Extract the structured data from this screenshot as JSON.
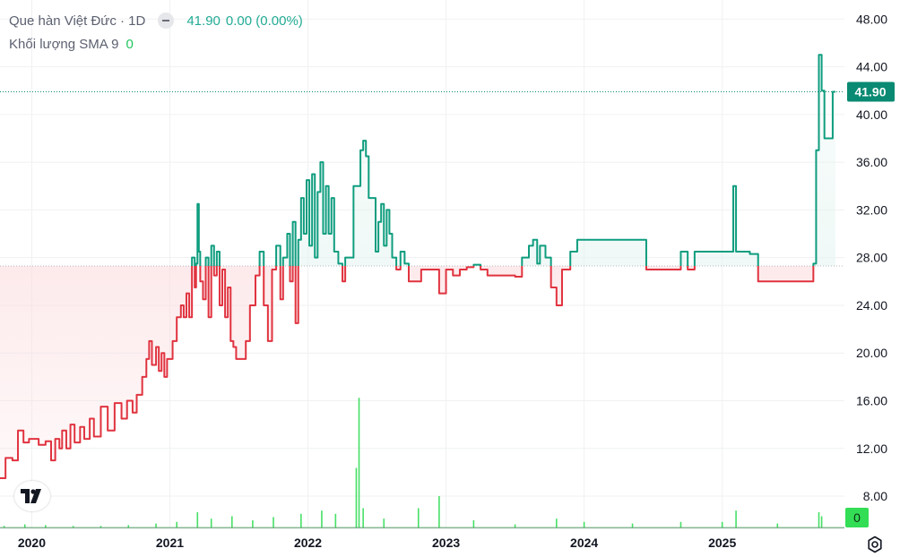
{
  "legend": {
    "title": "Que hàn Việt Đức · 1D",
    "last": "41.90",
    "change": "0.00 (0.00%)",
    "sma_label": "Khối lượng SMA 9",
    "sma_value": "0"
  },
  "price_label": "41.90",
  "volume_label": "0",
  "colors": {
    "up": "#0f9d7f",
    "down": "#e0333f",
    "up_fill": "#e3f4f0",
    "down_fill": "#fbd9dc",
    "baseline": "#b5b8bf",
    "last_line": "#0a8a72",
    "volume": "#33dd55",
    "grid": "#f0f1f3",
    "axis_text": "#131722"
  },
  "icons": {
    "logo": "tradingview-logo-icon",
    "settings": "settings-gear-icon",
    "toggle": "hide-series-icon"
  },
  "chart_data": {
    "type": "area",
    "style": "baseline",
    "baseline_value": 27.3,
    "ylim": [
      5.3,
      49.6
    ],
    "y_ticks": [
      "48.00",
      "44.00",
      "40.00",
      "36.00",
      "32.00",
      "28.00",
      "24.00",
      "20.00",
      "16.00",
      "12.00",
      "8.00"
    ],
    "y_tick_values": [
      48,
      44,
      40,
      36,
      32,
      28,
      24,
      20,
      16,
      12,
      8
    ],
    "x_ticks": [
      "2020",
      "2021",
      "2022",
      "2023",
      "2024",
      "2025"
    ],
    "x_tick_values": [
      2020.0,
      2021.0,
      2022.0,
      2023.0,
      2024.0,
      2025.0
    ],
    "xlim": [
      2019.77,
      2025.82
    ],
    "last_price": 41.9,
    "series": [
      {
        "points": [
          [
            2019.77,
            9.5
          ],
          [
            2019.81,
            11.2
          ],
          [
            2019.86,
            11.0
          ],
          [
            2019.9,
            13.5
          ],
          [
            2019.94,
            12.5
          ],
          [
            2019.98,
            12.8
          ],
          [
            2020.05,
            12.3
          ],
          [
            2020.1,
            12.6
          ],
          [
            2020.14,
            11.0
          ],
          [
            2020.17,
            12.8
          ],
          [
            2020.2,
            12.0
          ],
          [
            2020.22,
            13.5
          ],
          [
            2020.25,
            12.0
          ],
          [
            2020.28,
            14.0
          ],
          [
            2020.31,
            12.5
          ],
          [
            2020.35,
            13.8
          ],
          [
            2020.38,
            12.8
          ],
          [
            2020.42,
            14.5
          ],
          [
            2020.45,
            13.0
          ],
          [
            2020.5,
            15.5
          ],
          [
            2020.55,
            13.5
          ],
          [
            2020.6,
            15.8
          ],
          [
            2020.65,
            14.5
          ],
          [
            2020.69,
            16.0
          ],
          [
            2020.73,
            15.0
          ],
          [
            2020.76,
            16.5
          ],
          [
            2020.8,
            18.0
          ],
          [
            2020.83,
            19.5
          ],
          [
            2020.85,
            21.0
          ],
          [
            2020.87,
            19.0
          ],
          [
            2020.9,
            20.5
          ],
          [
            2020.92,
            18.5
          ],
          [
            2020.94,
            20.0
          ],
          [
            2020.96,
            18.0
          ],
          [
            2020.98,
            19.5
          ],
          [
            2021.02,
            21.0
          ],
          [
            2021.05,
            23.0
          ],
          [
            2021.08,
            24.0
          ],
          [
            2021.1,
            23.0
          ],
          [
            2021.12,
            25.0
          ],
          [
            2021.14,
            23.0
          ],
          [
            2021.16,
            28.0
          ],
          [
            2021.18,
            25.5
          ],
          [
            2021.19,
            27.5
          ],
          [
            2021.2,
            32.5
          ],
          [
            2021.21,
            28.5
          ],
          [
            2021.22,
            26.0
          ],
          [
            2021.24,
            24.5
          ],
          [
            2021.26,
            28.0
          ],
          [
            2021.28,
            23.0
          ],
          [
            2021.3,
            29.0
          ],
          [
            2021.32,
            26.5
          ],
          [
            2021.34,
            28.5
          ],
          [
            2021.36,
            24.0
          ],
          [
            2021.38,
            27.0
          ],
          [
            2021.4,
            23.0
          ],
          [
            2021.42,
            25.5
          ],
          [
            2021.44,
            21.0
          ],
          [
            2021.46,
            20.5
          ],
          [
            2021.48,
            19.5
          ],
          [
            2021.52,
            19.5
          ],
          [
            2021.55,
            21.0
          ],
          [
            2021.58,
            24.0
          ],
          [
            2021.62,
            26.5
          ],
          [
            2021.65,
            28.5
          ],
          [
            2021.68,
            24.0
          ],
          [
            2021.71,
            21.0
          ],
          [
            2021.74,
            27.0
          ],
          [
            2021.77,
            29.0
          ],
          [
            2021.8,
            24.5
          ],
          [
            2021.82,
            28.0
          ],
          [
            2021.85,
            30.0
          ],
          [
            2021.87,
            26.0
          ],
          [
            2021.89,
            31.0
          ],
          [
            2021.91,
            22.5
          ],
          [
            2021.93,
            29.5
          ],
          [
            2021.95,
            33.0
          ],
          [
            2021.97,
            30.0
          ],
          [
            2021.99,
            34.5
          ],
          [
            2022.01,
            29.0
          ],
          [
            2022.03,
            35.0
          ],
          [
            2022.05,
            28.0
          ],
          [
            2022.07,
            33.5
          ],
          [
            2022.09,
            36.0
          ],
          [
            2022.11,
            30.0
          ],
          [
            2022.13,
            34.0
          ],
          [
            2022.15,
            30.0
          ],
          [
            2022.17,
            33.0
          ],
          [
            2022.19,
            28.5
          ],
          [
            2022.22,
            27.5
          ],
          [
            2022.25,
            26.0
          ],
          [
            2022.27,
            28.0
          ],
          [
            2022.3,
            28.0
          ],
          [
            2022.33,
            34.0
          ],
          [
            2022.36,
            34.0
          ],
          [
            2022.38,
            37.0
          ],
          [
            2022.4,
            37.8
          ],
          [
            2022.42,
            36.5
          ],
          [
            2022.44,
            33.0
          ],
          [
            2022.47,
            33.0
          ],
          [
            2022.49,
            28.5
          ],
          [
            2022.51,
            31.0
          ],
          [
            2022.53,
            32.5
          ],
          [
            2022.55,
            29.0
          ],
          [
            2022.57,
            32.0
          ],
          [
            2022.59,
            30.0
          ],
          [
            2022.61,
            28.0
          ],
          [
            2022.64,
            27.0
          ],
          [
            2022.67,
            28.5
          ],
          [
            2022.7,
            27.5
          ],
          [
            2022.73,
            26.0
          ],
          [
            2022.78,
            26.0
          ],
          [
            2022.82,
            27.0
          ],
          [
            2022.9,
            27.0
          ],
          [
            2022.95,
            25.0
          ],
          [
            2023.0,
            27.0
          ],
          [
            2023.05,
            26.5
          ],
          [
            2023.1,
            27.0
          ],
          [
            2023.15,
            27.2
          ],
          [
            2023.2,
            27.4
          ],
          [
            2023.25,
            27.0
          ],
          [
            2023.3,
            26.5
          ],
          [
            2023.35,
            26.5
          ],
          [
            2023.45,
            26.5
          ],
          [
            2023.5,
            26.4
          ],
          [
            2023.55,
            28.0
          ],
          [
            2023.6,
            29.0
          ],
          [
            2023.63,
            29.5
          ],
          [
            2023.66,
            27.5
          ],
          [
            2023.68,
            29.0
          ],
          [
            2023.72,
            28.0
          ],
          [
            2023.76,
            25.5
          ],
          [
            2023.8,
            24.0
          ],
          [
            2023.84,
            27.0
          ],
          [
            2023.9,
            28.5
          ],
          [
            2023.95,
            29.5
          ],
          [
            2024.0,
            29.5
          ],
          [
            2024.1,
            29.5
          ],
          [
            2024.2,
            29.5
          ],
          [
            2024.3,
            29.5
          ],
          [
            2024.4,
            29.5
          ],
          [
            2024.45,
            27.0
          ],
          [
            2024.55,
            27.0
          ],
          [
            2024.65,
            27.0
          ],
          [
            2024.7,
            28.5
          ],
          [
            2024.75,
            27.0
          ],
          [
            2024.8,
            28.5
          ],
          [
            2024.9,
            28.5
          ],
          [
            2025.0,
            28.5
          ],
          [
            2025.05,
            28.5
          ],
          [
            2025.08,
            34.0
          ],
          [
            2025.1,
            28.5
          ],
          [
            2025.15,
            28.5
          ],
          [
            2025.2,
            28.3
          ],
          [
            2025.26,
            26.0
          ],
          [
            2025.32,
            26.0
          ],
          [
            2025.45,
            26.0
          ],
          [
            2025.55,
            26.0
          ],
          [
            2025.63,
            26.0
          ],
          [
            2025.66,
            27.5
          ],
          [
            2025.68,
            37.0
          ],
          [
            2025.7,
            45.0
          ],
          [
            2025.72,
            42.0
          ],
          [
            2025.74,
            38.0
          ],
          [
            2025.78,
            38.0
          ],
          [
            2025.8,
            41.9
          ],
          [
            2025.82,
            41.9
          ]
        ]
      }
    ],
    "volume": {
      "name": "Khối lượng",
      "bars": [
        [
          2019.8,
          0.3
        ],
        [
          2019.95,
          0.5
        ],
        [
          2020.1,
          0.4
        ],
        [
          2020.3,
          0.3
        ],
        [
          2020.5,
          0.3
        ],
        [
          2020.7,
          0.4
        ],
        [
          2020.9,
          0.6
        ],
        [
          2021.05,
          0.8
        ],
        [
          2021.2,
          2.0
        ],
        [
          2021.3,
          1.2
        ],
        [
          2021.45,
          1.5
        ],
        [
          2021.6,
          1.0
        ],
        [
          2021.75,
          1.4
        ],
        [
          2021.95,
          1.8
        ],
        [
          2022.1,
          2.2
        ],
        [
          2022.2,
          1.8
        ],
        [
          2022.35,
          7.5
        ],
        [
          2022.37,
          16.2
        ],
        [
          2022.4,
          2.5
        ],
        [
          2022.55,
          1.2
        ],
        [
          2022.8,
          2.5
        ],
        [
          2022.95,
          4.0
        ],
        [
          2023.2,
          1.0
        ],
        [
          2023.5,
          0.5
        ],
        [
          2023.8,
          1.2
        ],
        [
          2024.0,
          0.8
        ],
        [
          2024.35,
          0.6
        ],
        [
          2024.7,
          0.8
        ],
        [
          2025.0,
          0.8
        ],
        [
          2025.1,
          2.2
        ],
        [
          2025.4,
          0.6
        ],
        [
          2025.7,
          2.0
        ],
        [
          2025.72,
          1.5
        ]
      ]
    }
  }
}
